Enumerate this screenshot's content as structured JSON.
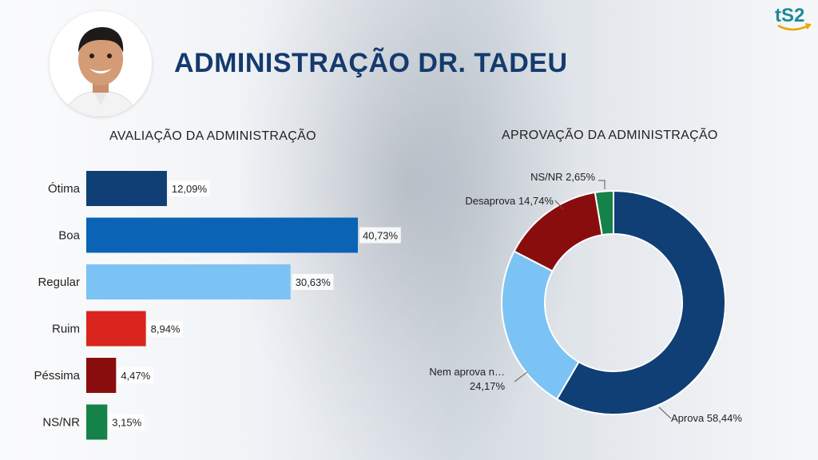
{
  "header": {
    "title": "ADMINISTRAÇÃO DR. TADEU",
    "logo_text": "tS2"
  },
  "colors": {
    "otima": "#0f3f75",
    "boa": "#0a63b5",
    "regular": "#7cc3f5",
    "ruim": "#d9251d",
    "pessima": "#8a0d0d",
    "nsnr": "#15824a",
    "aprova": "#0f3f75",
    "nem": "#7cc3f5",
    "desaprova": "#8a0d0d",
    "nsnr_pie": "#15824a"
  },
  "chart_data": [
    {
      "type": "bar",
      "orientation": "horizontal",
      "title": "AVALIAÇÃO DA ADMINISTRAÇÃO",
      "categories": [
        "Ótima",
        "Boa",
        "Regular",
        "Ruim",
        "Péssima",
        "NS/NR"
      ],
      "values": [
        12.09,
        40.73,
        30.63,
        8.94,
        4.47,
        3.15
      ],
      "data_labels": [
        "12,09%",
        "40,73%",
        "30,63%",
        "8,94%",
        "4,47%",
        "3,15%"
      ],
      "colors": [
        "#0f3f75",
        "#0a63b5",
        "#7cc3f5",
        "#d9251d",
        "#8a0d0d",
        "#15824a"
      ],
      "xlim": [
        0,
        40.73
      ]
    },
    {
      "type": "pie",
      "variant": "donut",
      "title": "APROVAÇÃO DA ADMINISTRAÇÃO",
      "categories": [
        "Aprova",
        "Nem aprova n…",
        "Desaprova",
        "NS/NR"
      ],
      "values": [
        58.44,
        24.17,
        14.74,
        2.65
      ],
      "data_labels": [
        "Aprova 58,44%",
        "Nem aprova n…",
        "Desaprova 14,74%",
        "NS/NR 2,65%"
      ],
      "data_labels_extra": [
        "",
        "24,17%",
        "",
        ""
      ],
      "colors": [
        "#0f3f75",
        "#7cc3f5",
        "#8a0d0d",
        "#15824a"
      ]
    }
  ]
}
